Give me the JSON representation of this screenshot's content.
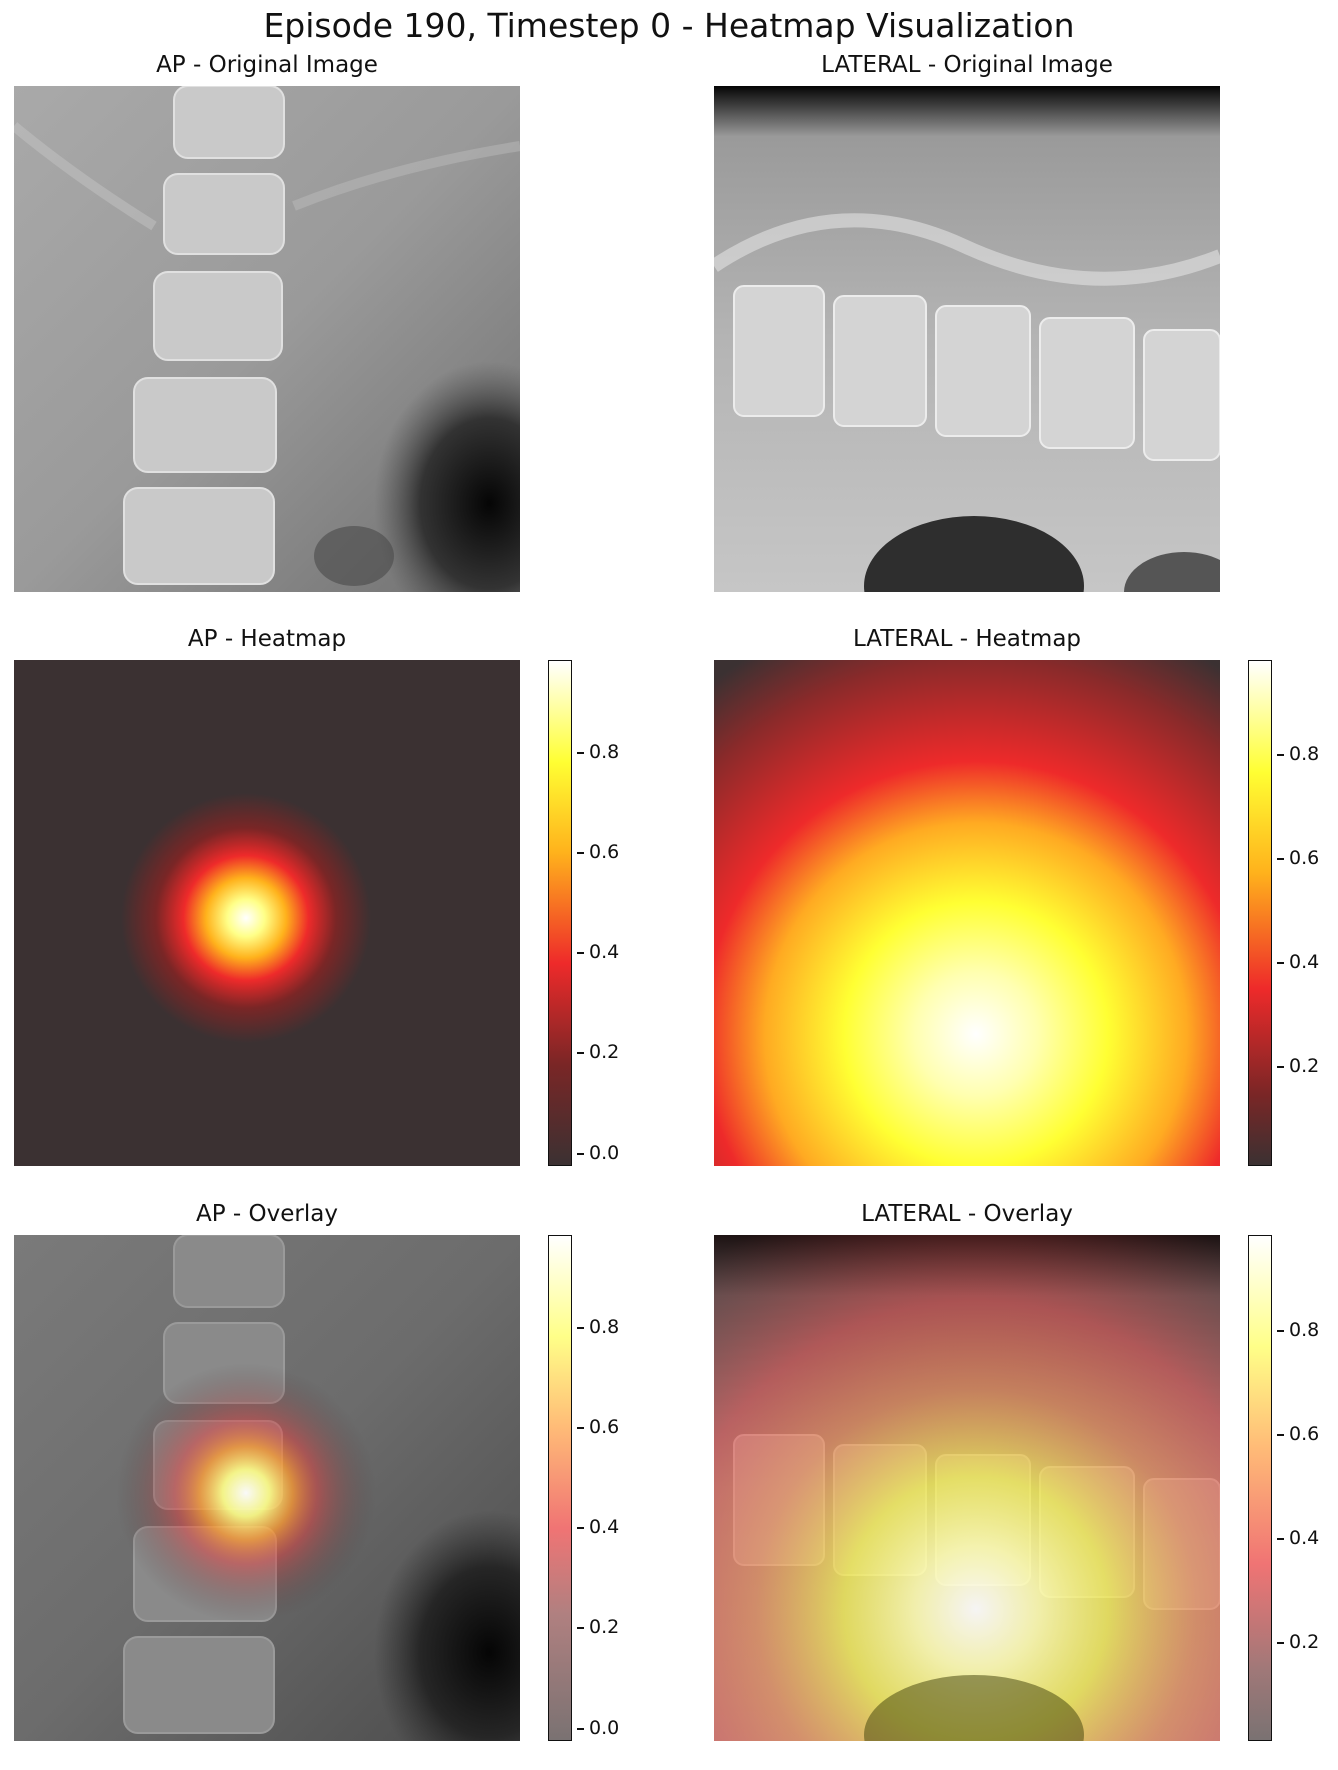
{
  "figure": {
    "title": "Episode 190, Timestep 0 - Heatmap Visualization"
  },
  "panels": {
    "ap_original": {
      "title": "AP - Original Image"
    },
    "lat_original": {
      "title": "LATERAL - Original Image"
    },
    "ap_heatmap": {
      "title": "AP - Heatmap",
      "colormap": "hot",
      "peak_center_fraction": [
        0.46,
        0.51
      ]
    },
    "lat_heatmap": {
      "title": "LATERAL - Heatmap",
      "colormap": "hot",
      "peak_center_fraction": [
        0.52,
        0.74
      ]
    },
    "ap_overlay": {
      "title": "AP - Overlay",
      "colormap": "hot"
    },
    "lat_overlay": {
      "title": "LATERAL - Overlay",
      "colormap": "hot"
    }
  },
  "colorbars": {
    "ap_heatmap": [
      "0.8",
      "0.6",
      "0.4",
      "0.2",
      "0.0"
    ],
    "lat_heatmap": [
      "0.8",
      "0.6",
      "0.4",
      "0.2"
    ],
    "ap_overlay": [
      "0.8",
      "0.6",
      "0.4",
      "0.2",
      "0.0"
    ],
    "lat_overlay": [
      "0.8",
      "0.6",
      "0.4",
      "0.2"
    ]
  },
  "colors": {
    "heat_dark": "#3b3132",
    "heat_red": "#ee2a2a",
    "heat_yellow": "#ffff33",
    "heat_white": "#ffffff"
  }
}
